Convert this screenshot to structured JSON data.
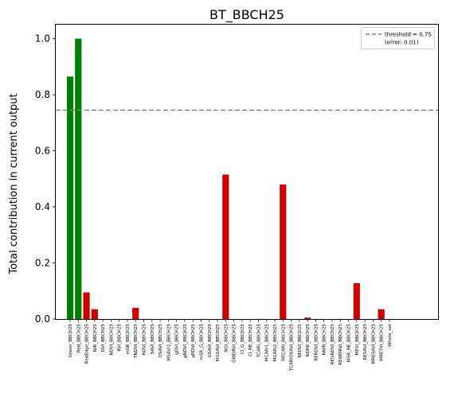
{
  "chart_data": {
    "type": "bar",
    "title": "BT_BBCH25",
    "xlabel": "",
    "ylabel": "Total contribution in current output",
    "ylim": [
      0,
      1.05
    ],
    "yticks": [
      0.0,
      0.2,
      0.4,
      0.6,
      0.8,
      1.0
    ],
    "yticklabels": [
      "0.0",
      "0.2",
      "0.4",
      "0.6",
      "0.8",
      "1.0"
    ],
    "grid": false,
    "legend": {
      "placement": "top-right",
      "entries": [
        {
          "label_line1": "threshold = 0.75",
          "label_line2": "(error: 0.01)",
          "style": "dashed",
          "color": "#808080"
        }
      ]
    },
    "threshold": 0.745,
    "colors": {
      "above": "#008000",
      "below": "#cc0000",
      "threshold": "#808080"
    },
    "categories": [
      "Green_BBCH25",
      "Red_BBCH25",
      "RedEdge_BBCH25",
      "NIR_BBCH25",
      "DVI_BBCH25",
      "NDVI_BBCH25",
      "RVI_BBCH25",
      "mSR_BBCH25",
      "TNDVI_BBCH25",
      "RDVI_BBCH25",
      "SAVI_BBCH25",
      "OSAVI_BBCH25",
      "MSAVI2_BBCH25",
      "gDVI_BBCH25",
      "gNDVI_BBCH25",
      "gRDVI_BBCH25",
      "mSR_G_BBCH25",
      "GSAVI_BBCH25",
      "MGSAVI_BBCH25",
      "NGI_BBCH25",
      "GWDRVI_BBCH25",
      "CI_G_BBCH25",
      "CI_RE_BBCH25",
      "TCARI_BBCH25",
      "MCARI1_BBCH25",
      "MCARI2_BBCH25",
      "MTCARI_BBCH25",
      "TCARIOSAVI_BBCH25",
      "REDVI_BBCH25",
      "NDRE_BBCH25",
      "RERDVI_BBCH25",
      "NNIR_BBCH25",
      "REGNDVI_BBCH25",
      "REWDRVI_BBCH25",
      "MSR_RE_BBCH25",
      "MEVI_BBCH25",
      "RESAVI_BBCH25",
      "MRESAVI_BBCH25",
      "MRETVI_BBCH25",
      "Whole_set"
    ],
    "values": [
      0.865,
      1.0,
      0.095,
      0.035,
      0,
      0,
      0,
      0,
      0.04,
      0,
      0,
      0,
      0,
      0,
      0,
      0,
      0,
      0,
      0,
      0.515,
      0,
      0,
      0,
      0,
      0,
      0,
      0.48,
      0,
      0,
      0.005,
      0,
      0,
      0,
      0,
      0,
      0.128,
      0,
      0,
      0.035,
      0
    ]
  }
}
